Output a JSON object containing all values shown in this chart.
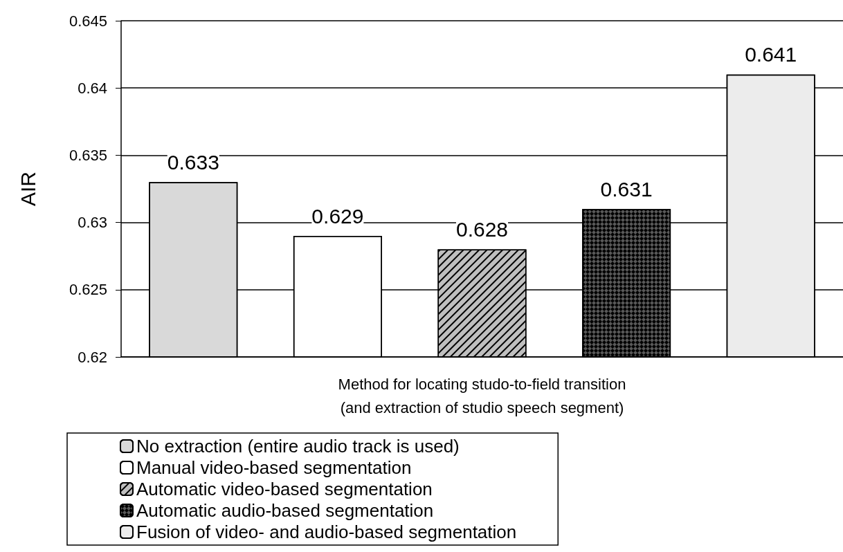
{
  "chart_data": {
    "type": "bar",
    "xlabel": "Method for locating studo-to-field transition\n(and extraction of studio speech segment)",
    "ylabel": "AIR",
    "categories": [
      null,
      null,
      null,
      null,
      null
    ],
    "series": [
      {
        "name": "No extraction (entire audio track is used)",
        "color": "#d9d9d9",
        "values": [
          0.633,
          null,
          null,
          null,
          null
        ]
      },
      {
        "name": "Manual video-based segmentation",
        "color": "#ffffff",
        "values": [
          null,
          0.629,
          null,
          null,
          null
        ]
      },
      {
        "name": "Automatic video-based segmentation",
        "color": "#bfbfbf",
        "values": [
          null,
          null,
          0.628,
          null,
          null
        ]
      },
      {
        "name": "Automatic audio-based segmentation",
        "color": "#595959",
        "values": [
          null,
          null,
          null,
          0.631,
          null
        ]
      },
      {
        "name": "Fusion of video- and audio-based segmentation",
        "color": "#ececec",
        "values": [
          null,
          null,
          null,
          null,
          0.641
        ]
      }
    ],
    "ylim": [
      0.62,
      0.645
    ],
    "yticks": [
      0.62,
      0.625,
      0.63,
      0.635,
      0.64,
      0.645
    ],
    "grid": "y",
    "legend": "bottom left",
    "data_labels": true
  }
}
